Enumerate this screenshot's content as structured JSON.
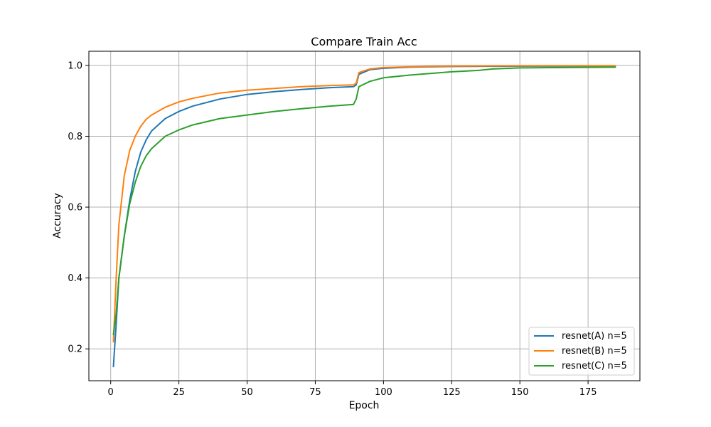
{
  "chart_data": {
    "type": "line",
    "title": "Compare Train Acc",
    "xlabel": "Epoch",
    "ylabel": "Accuracy",
    "xlim": [
      -8,
      194
    ],
    "ylim": [
      0.11,
      1.04
    ],
    "xticks": [
      0,
      25,
      50,
      75,
      100,
      125,
      150,
      175
    ],
    "yticks": [
      0.2,
      0.4,
      0.6,
      0.8,
      1.0
    ],
    "ytick_labels": [
      "0.2",
      "0.4",
      "0.6",
      "0.8",
      "1.0"
    ],
    "grid": true,
    "legend_position": "lower-right",
    "series": [
      {
        "name": "resnet(A) n=5",
        "color": "#1f77b4",
        "points": [
          [
            1,
            0.15
          ],
          [
            2,
            0.27
          ],
          [
            3,
            0.4
          ],
          [
            5,
            0.52
          ],
          [
            7,
            0.62
          ],
          [
            9,
            0.7
          ],
          [
            11,
            0.755
          ],
          [
            13,
            0.79
          ],
          [
            15,
            0.815
          ],
          [
            20,
            0.85
          ],
          [
            25,
            0.87
          ],
          [
            30,
            0.885
          ],
          [
            40,
            0.905
          ],
          [
            50,
            0.918
          ],
          [
            60,
            0.926
          ],
          [
            70,
            0.932
          ],
          [
            80,
            0.937
          ],
          [
            89,
            0.94
          ],
          [
            90,
            0.945
          ],
          [
            91,
            0.975
          ],
          [
            95,
            0.988
          ],
          [
            100,
            0.992
          ],
          [
            110,
            0.995
          ],
          [
            125,
            0.997
          ],
          [
            150,
            0.998
          ],
          [
            185,
            0.998
          ]
        ]
      },
      {
        "name": "resnet(B) n=5",
        "color": "#ff7f0e",
        "points": [
          [
            1,
            0.22
          ],
          [
            2,
            0.4
          ],
          [
            3,
            0.55
          ],
          [
            5,
            0.69
          ],
          [
            7,
            0.76
          ],
          [
            9,
            0.8
          ],
          [
            11,
            0.828
          ],
          [
            13,
            0.848
          ],
          [
            15,
            0.86
          ],
          [
            20,
            0.882
          ],
          [
            25,
            0.897
          ],
          [
            30,
            0.907
          ],
          [
            40,
            0.922
          ],
          [
            50,
            0.93
          ],
          [
            60,
            0.935
          ],
          [
            70,
            0.94
          ],
          [
            80,
            0.943
          ],
          [
            89,
            0.945
          ],
          [
            90,
            0.95
          ],
          [
            91,
            0.98
          ],
          [
            95,
            0.99
          ],
          [
            100,
            0.994
          ],
          [
            110,
            0.996
          ],
          [
            125,
            0.998
          ],
          [
            150,
            0.999
          ],
          [
            185,
            0.999
          ]
        ]
      },
      {
        "name": "resnet(C) n=5",
        "color": "#2ca02c",
        "points": [
          [
            1,
            0.24
          ],
          [
            2,
            0.3
          ],
          [
            3,
            0.4
          ],
          [
            5,
            0.52
          ],
          [
            7,
            0.61
          ],
          [
            9,
            0.67
          ],
          [
            11,
            0.715
          ],
          [
            13,
            0.745
          ],
          [
            15,
            0.765
          ],
          [
            20,
            0.8
          ],
          [
            25,
            0.818
          ],
          [
            30,
            0.832
          ],
          [
            40,
            0.85
          ],
          [
            50,
            0.86
          ],
          [
            60,
            0.87
          ],
          [
            70,
            0.878
          ],
          [
            80,
            0.885
          ],
          [
            89,
            0.89
          ],
          [
            90,
            0.905
          ],
          [
            91,
            0.94
          ],
          [
            95,
            0.955
          ],
          [
            100,
            0.965
          ],
          [
            110,
            0.973
          ],
          [
            125,
            0.982
          ],
          [
            135,
            0.986
          ],
          [
            140,
            0.99
          ],
          [
            150,
            0.993
          ],
          [
            185,
            0.995
          ]
        ]
      }
    ]
  }
}
